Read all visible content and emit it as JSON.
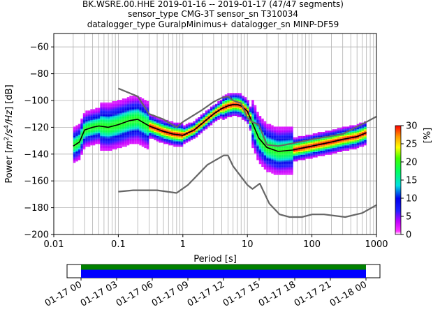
{
  "chart_data": {
    "type": "heatmap",
    "title_lines": [
      "BK.WSRE.00.HHE   2019-01-16 -- 2019-01-17  (47/47 segments)",
      "sensor_type CMG-3T sensor_sn T310034",
      "datalogger_type GuralpMinimus+ datalogger_sn MINP-DF59"
    ],
    "xlabel": "Period [s]",
    "ylabel_parts": [
      "Power [",
      "m",
      "2",
      "/s",
      "4",
      "/Hz",
      "] [dB]"
    ],
    "x_scale": "log",
    "xlim": [
      0.01,
      1000
    ],
    "ylim": [
      -200,
      -50
    ],
    "x_ticks": [
      {
        "v": 0.01,
        "label": "0.01"
      },
      {
        "v": 0.1,
        "label": "0.1"
      },
      {
        "v": 1,
        "label": "1"
      },
      {
        "v": 10,
        "label": "10"
      },
      {
        "v": 100,
        "label": "100"
      },
      {
        "v": 1000,
        "label": "1000"
      }
    ],
    "y_ticks": [
      {
        "v": -60,
        "label": "−60"
      },
      {
        "v": -80,
        "label": "−80"
      },
      {
        "v": -100,
        "label": "−100"
      },
      {
        "v": -120,
        "label": "−120"
      },
      {
        "v": -140,
        "label": "−140"
      },
      {
        "v": -160,
        "label": "−160"
      },
      {
        "v": -180,
        "label": "−180"
      },
      {
        "v": -200,
        "label": "−200"
      }
    ],
    "grid": true,
    "colorbar": {
      "label": "[%]",
      "range": [
        0,
        30
      ],
      "ticks": [
        {
          "v": 0,
          "label": "0"
        },
        {
          "v": 5,
          "label": "5"
        },
        {
          "v": 10,
          "label": "10"
        },
        {
          "v": 15,
          "label": "15"
        },
        {
          "v": 20,
          "label": "20"
        },
        {
          "v": 25,
          "label": "25"
        },
        {
          "v": 30,
          "label": "30"
        }
      ]
    },
    "series": [
      {
        "role": "mean",
        "color": "#000000",
        "x": [
          0.02,
          0.025,
          0.03,
          0.04,
          0.05,
          0.07,
          0.1,
          0.15,
          0.2,
          0.3,
          0.5,
          0.7,
          1,
          1.5,
          2,
          3,
          4,
          5,
          6,
          7,
          8,
          10,
          12,
          15,
          20,
          30,
          50,
          100,
          200,
          300,
          500,
          700
        ],
        "y": [
          -134,
          -131,
          -122,
          -120,
          -119,
          -120,
          -118,
          -115,
          -114,
          -119,
          -123,
          -125,
          -126,
          -122,
          -117,
          -110,
          -106,
          -104,
          -103,
          -103,
          -104,
          -108,
          -117,
          -128,
          -135,
          -138,
          -137,
          -134,
          -131,
          -129,
          -127,
          -124
        ]
      },
      {
        "role": "high-noise-model",
        "color": "#666666",
        "x": [
          0.1,
          0.2,
          0.3,
          0.5,
          0.8,
          1,
          2,
          3,
          4,
          5,
          6,
          8,
          10,
          12,
          15,
          20,
          30,
          50,
          100,
          300,
          700,
          1000
        ],
        "y": [
          -91,
          -97,
          -110,
          -114,
          -120,
          -116,
          -107,
          -101,
          -98,
          -97,
          -100,
          -102,
          -113,
          -116,
          -118,
          -133,
          -134,
          -132,
          -129,
          -125,
          -116,
          -112
        ]
      },
      {
        "role": "low-noise-model",
        "color": "#666666",
        "x": [
          0.1,
          0.17,
          0.4,
          0.8,
          1.2,
          2.4,
          4.3,
          5,
          6,
          10,
          12,
          15.6,
          21.9,
          31.6,
          45,
          70,
          101,
          154,
          328,
          600,
          1000
        ],
        "y": [
          -168,
          -167,
          -167,
          -169,
          -163,
          -148,
          -141,
          -141,
          -149,
          -163,
          -166,
          -162,
          -177,
          -185,
          -187,
          -187,
          -185,
          -185,
          -187,
          -184,
          -178
        ]
      }
    ],
    "coverage": {
      "tick_labels": [
        "01-17 00",
        "01-17 03",
        "01-17 06",
        "01-17 09",
        "01-17 12",
        "01-17 15",
        "01-17 18",
        "01-17 21",
        "01-18 00"
      ],
      "bars": [
        {
          "name": "used-data",
          "color": "#008000"
        },
        {
          "name": "available-data",
          "color": "#0000ff"
        }
      ]
    }
  }
}
